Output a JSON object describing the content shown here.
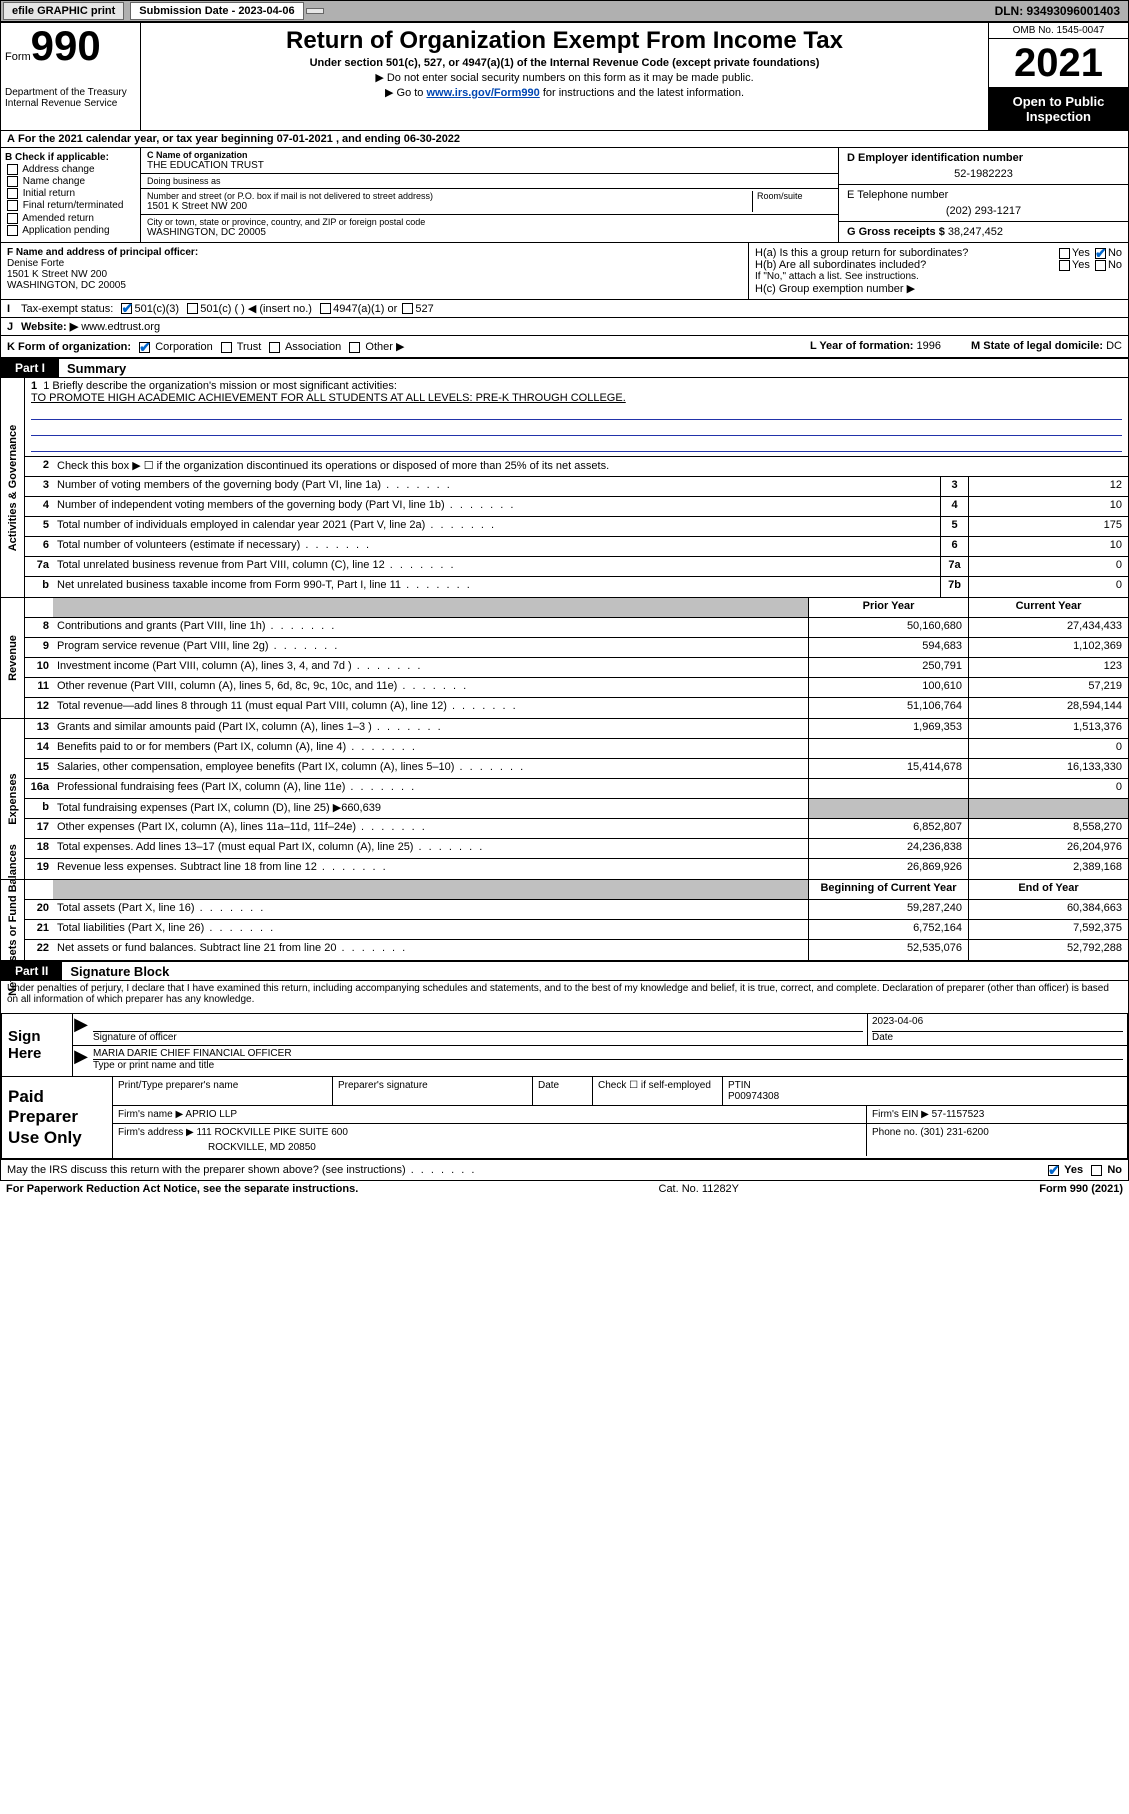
{
  "topbar": {
    "efile": "efile GRAPHIC print",
    "submission_label": "Submission Date - 2023-04-06",
    "dln": "DLN: 93493096001403"
  },
  "header": {
    "form_word": "Form",
    "form_num": "990",
    "dept": "Department of the Treasury\nInternal Revenue Service",
    "title": "Return of Organization Exempt From Income Tax",
    "sub1": "Under section 501(c), 527, or 4947(a)(1) of the Internal Revenue Code (except private foundations)",
    "sub2": "▶ Do not enter social security numbers on this form as it may be made public.",
    "sub3_pre": "▶ Go to ",
    "sub3_link": "www.irs.gov/Form990",
    "sub3_post": " for instructions and the latest information.",
    "omb": "OMB No. 1545-0047",
    "year": "2021",
    "open": "Open to Public Inspection"
  },
  "period": "For the 2021 calendar year, or tax year beginning 07-01-2021   , and ending 06-30-2022",
  "boxB": {
    "label": "B Check if applicable:",
    "items": [
      "Address change",
      "Name change",
      "Initial return",
      "Final return/terminated",
      "Amended return",
      "Application pending"
    ]
  },
  "boxC": {
    "label_name": "C Name of organization",
    "name": "THE EDUCATION TRUST",
    "dba_label": "Doing business as",
    "dba": "",
    "addr_label": "Number and street (or P.O. box if mail is not delivered to street address)",
    "room_label": "Room/suite",
    "addr": "1501 K Street NW 200",
    "city_label": "City or town, state or province, country, and ZIP or foreign postal code",
    "city": "WASHINGTON, DC  20005"
  },
  "boxD": {
    "label": "D Employer identification number",
    "val": "52-1982223"
  },
  "boxE": {
    "label": "E Telephone number",
    "val": "(202) 293-1217"
  },
  "boxG": {
    "label": "G Gross receipts $",
    "val": "38,247,452"
  },
  "boxF": {
    "label": "F  Name and address of principal officer:",
    "name": "Denise Forte",
    "addr": "1501 K Street NW 200\nWASHINGTON, DC  20005"
  },
  "boxH": {
    "a": "H(a)  Is this a group return for subordinates?",
    "a_yes": "Yes",
    "a_no": "No",
    "b": "H(b)  Are all subordinates included?",
    "b_yes": "Yes",
    "b_no": "No",
    "b_note": "If \"No,\" attach a list. See instructions.",
    "c": "H(c)  Group exemption number ▶"
  },
  "lineI": {
    "label": "Tax-exempt status:",
    "opt1": "501(c)(3)",
    "opt2": "501(c) (  ) ◀ (insert no.)",
    "opt3": "4947(a)(1) or",
    "opt4": "527"
  },
  "lineJ": {
    "label": "Website: ▶",
    "val": "www.edtrust.org"
  },
  "lineK": {
    "label": "K Form of organization:",
    "opts": [
      "Corporation",
      "Trust",
      "Association",
      "Other ▶"
    ]
  },
  "lineL": {
    "label": "L Year of formation:",
    "val": "1996"
  },
  "lineM": {
    "label": "M State of legal domicile:",
    "val": "DC"
  },
  "partI": {
    "tag": "Part I",
    "title": "Summary"
  },
  "mission": {
    "q": "1  Briefly describe the organization's mission or most significant activities:",
    "text": "TO PROMOTE HIGH ACADEMIC ACHIEVEMENT FOR ALL STUDENTS AT ALL LEVELS: PRE-K THROUGH COLLEGE."
  },
  "line2": "Check this box ▶ ☐  if the organization discontinued its operations or disposed of more than 25% of its net assets.",
  "gov_rows": [
    {
      "n": "3",
      "t": "Number of voting members of the governing body (Part VI, line 1a)",
      "box": "3",
      "v": "12"
    },
    {
      "n": "4",
      "t": "Number of independent voting members of the governing body (Part VI, line 1b)",
      "box": "4",
      "v": "10"
    },
    {
      "n": "5",
      "t": "Total number of individuals employed in calendar year 2021 (Part V, line 2a)",
      "box": "5",
      "v": "175"
    },
    {
      "n": "6",
      "t": "Total number of volunteers (estimate if necessary)",
      "box": "6",
      "v": "10"
    },
    {
      "n": "7a",
      "t": "Total unrelated business revenue from Part VIII, column (C), line 12",
      "box": "7a",
      "v": "0"
    },
    {
      "n": "",
      "t": "Net unrelated business taxable income from Form 990-T, Part I, line 11",
      "box": "7b",
      "v": "0",
      "sub": "b"
    }
  ],
  "col_head": {
    "prior": "Prior Year",
    "current": "Current Year"
  },
  "revenue_rows": [
    {
      "n": "8",
      "t": "Contributions and grants (Part VIII, line 1h)",
      "p": "50,160,680",
      "c": "27,434,433"
    },
    {
      "n": "9",
      "t": "Program service revenue (Part VIII, line 2g)",
      "p": "594,683",
      "c": "1,102,369"
    },
    {
      "n": "10",
      "t": "Investment income (Part VIII, column (A), lines 3, 4, and 7d )",
      "p": "250,791",
      "c": "123"
    },
    {
      "n": "11",
      "t": "Other revenue (Part VIII, column (A), lines 5, 6d, 8c, 9c, 10c, and 11e)",
      "p": "100,610",
      "c": "57,219"
    },
    {
      "n": "12",
      "t": "Total revenue—add lines 8 through 11 (must equal Part VIII, column (A), line 12)",
      "p": "51,106,764",
      "c": "28,594,144"
    }
  ],
  "expense_rows": [
    {
      "n": "13",
      "t": "Grants and similar amounts paid (Part IX, column (A), lines 1–3 )",
      "p": "1,969,353",
      "c": "1,513,376"
    },
    {
      "n": "14",
      "t": "Benefits paid to or for members (Part IX, column (A), line 4)",
      "p": "",
      "c": "0"
    },
    {
      "n": "15",
      "t": "Salaries, other compensation, employee benefits (Part IX, column (A), lines 5–10)",
      "p": "15,414,678",
      "c": "16,133,330"
    },
    {
      "n": "16a",
      "t": "Professional fundraising fees (Part IX, column (A), line 11e)",
      "p": "",
      "c": "0"
    },
    {
      "n": "b",
      "t": "Total fundraising expenses (Part IX, column (D), line 25) ▶660,639",
      "grey": true
    },
    {
      "n": "17",
      "t": "Other expenses (Part IX, column (A), lines 11a–11d, 11f–24e)",
      "p": "6,852,807",
      "c": "8,558,270"
    },
    {
      "n": "18",
      "t": "Total expenses. Add lines 13–17 (must equal Part IX, column (A), line 25)",
      "p": "24,236,838",
      "c": "26,204,976"
    },
    {
      "n": "19",
      "t": "Revenue less expenses. Subtract line 18 from line 12",
      "p": "26,869,926",
      "c": "2,389,168"
    }
  ],
  "net_head": {
    "beg": "Beginning of Current Year",
    "end": "End of Year"
  },
  "net_rows": [
    {
      "n": "20",
      "t": "Total assets (Part X, line 16)",
      "p": "59,287,240",
      "c": "60,384,663"
    },
    {
      "n": "21",
      "t": "Total liabilities (Part X, line 26)",
      "p": "6,752,164",
      "c": "7,592,375"
    },
    {
      "n": "22",
      "t": "Net assets or fund balances. Subtract line 21 from line 20",
      "p": "52,535,076",
      "c": "52,792,288"
    }
  ],
  "partII": {
    "tag": "Part II",
    "title": "Signature Block"
  },
  "penalties": "Under penalties of perjury, I declare that I have examined this return, including accompanying schedules and statements, and to the best of my knowledge and belief, it is true, correct, and complete. Declaration of preparer (other than officer) is based on all information of which preparer has any knowledge.",
  "sign": {
    "label": "Sign Here",
    "sig_label": "Signature of officer",
    "date_label": "Date",
    "date": "2023-04-06",
    "name": "MARIA DARIE  CHIEF FINANCIAL OFFICER",
    "name_label": "Type or print name and title"
  },
  "prep": {
    "label": "Paid Preparer Use Only",
    "h1": "Print/Type preparer's name",
    "h2": "Preparer's signature",
    "h3": "Date",
    "check_label": "Check ☐ if self-employed",
    "ptin_label": "PTIN",
    "ptin": "P00974308",
    "firm_label": "Firm's name   ▶",
    "firm": "APRIO LLP",
    "ein_label": "Firm's EIN ▶",
    "ein": "57-1157523",
    "addr_label": "Firm's address ▶",
    "addr": "111 ROCKVILLE PIKE SUITE 600",
    "addr2": "ROCKVILLE, MD  20850",
    "phone_label": "Phone no.",
    "phone": "(301) 231-6200"
  },
  "discuss": {
    "q": "May the IRS discuss this return with the preparer shown above? (see instructions)",
    "yes": "Yes",
    "no": "No"
  },
  "footer": {
    "l": "For Paperwork Reduction Act Notice, see the separate instructions.",
    "m": "Cat. No. 11282Y",
    "r": "Form 990 (2021)"
  },
  "vlabels": {
    "gov": "Activities & Governance",
    "rev": "Revenue",
    "exp": "Expenses",
    "net": "Net Assets or Fund Balances"
  },
  "colors": {
    "link": "#0047b3",
    "check": "#0066cc",
    "grey": "#c0c0c0",
    "topbar": "#b0b0b0"
  }
}
